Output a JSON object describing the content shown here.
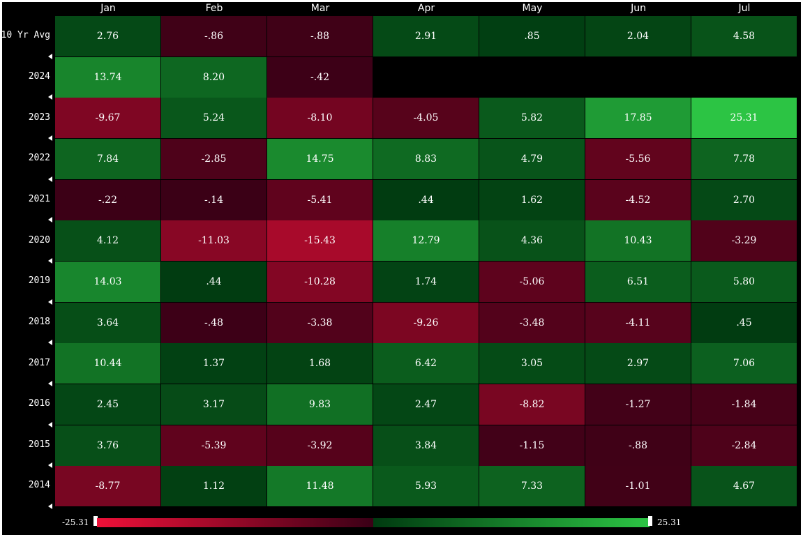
{
  "chart_data": {
    "type": "heatmap",
    "columns": [
      "Jan",
      "Feb",
      "Mar",
      "Apr",
      "May",
      "Jun",
      "Jul"
    ],
    "rows": [
      {
        "label": "10 Yr Avg",
        "values": [
          2.76,
          -0.86,
          -0.88,
          2.91,
          0.85,
          2.04,
          4.58
        ],
        "display": [
          "2.76",
          "-.86",
          "-.88",
          "2.91",
          ".85",
          "2.04",
          "4.58"
        ]
      },
      {
        "label": "2024",
        "values": [
          13.74,
          8.2,
          -0.42,
          null,
          null,
          null,
          null
        ],
        "display": [
          "13.74",
          "8.20",
          "-.42",
          "",
          "",
          "",
          ""
        ]
      },
      {
        "label": "2023",
        "values": [
          -9.67,
          5.24,
          -8.1,
          -4.05,
          5.82,
          17.85,
          25.31
        ],
        "display": [
          "-9.67",
          "5.24",
          "-8.10",
          "-4.05",
          "5.82",
          "17.85",
          "25.31"
        ]
      },
      {
        "label": "2022",
        "values": [
          7.84,
          -2.85,
          14.75,
          8.83,
          4.79,
          -5.56,
          7.78
        ],
        "display": [
          "7.84",
          "-2.85",
          "14.75",
          "8.83",
          "4.79",
          "-5.56",
          "7.78"
        ]
      },
      {
        "label": "2021",
        "values": [
          -0.22,
          -0.14,
          -5.41,
          0.44,
          1.62,
          -4.52,
          2.7
        ],
        "display": [
          "-.22",
          "-.14",
          "-5.41",
          ".44",
          "1.62",
          "-4.52",
          "2.70"
        ]
      },
      {
        "label": "2020",
        "values": [
          4.12,
          -11.03,
          -15.43,
          12.79,
          4.36,
          10.43,
          -3.29
        ],
        "display": [
          "4.12",
          "-11.03",
          "-15.43",
          "12.79",
          "4.36",
          "10.43",
          "-3.29"
        ]
      },
      {
        "label": "2019",
        "values": [
          14.03,
          0.44,
          -10.28,
          1.74,
          -5.06,
          6.51,
          5.8
        ],
        "display": [
          "14.03",
          ".44",
          "-10.28",
          "1.74",
          "-5.06",
          "6.51",
          "5.80"
        ]
      },
      {
        "label": "2018",
        "values": [
          3.64,
          -0.48,
          -3.38,
          -9.26,
          -3.48,
          -4.11,
          0.45
        ],
        "display": [
          "3.64",
          "-.48",
          "-3.38",
          "-9.26",
          "-3.48",
          "-4.11",
          ".45"
        ]
      },
      {
        "label": "2017",
        "values": [
          10.44,
          1.37,
          1.68,
          6.42,
          3.05,
          2.97,
          7.06
        ],
        "display": [
          "10.44",
          "1.37",
          "1.68",
          "6.42",
          "3.05",
          "2.97",
          "7.06"
        ]
      },
      {
        "label": "2016",
        "values": [
          2.45,
          3.17,
          9.83,
          2.47,
          -8.82,
          -1.27,
          -1.84
        ],
        "display": [
          "2.45",
          "3.17",
          "9.83",
          "2.47",
          "-8.82",
          "-1.27",
          "-1.84"
        ]
      },
      {
        "label": "2015",
        "values": [
          3.76,
          -5.39,
          -3.92,
          3.84,
          -1.15,
          -0.88,
          -2.84
        ],
        "display": [
          "3.76",
          "-5.39",
          "-3.92",
          "3.84",
          "-1.15",
          "-.88",
          "-2.84"
        ]
      },
      {
        "label": "2014",
        "values": [
          -8.77,
          1.12,
          11.48,
          5.93,
          7.33,
          -1.01,
          4.67
        ],
        "display": [
          "-8.77",
          "1.12",
          "11.48",
          "5.93",
          "7.33",
          "-1.01",
          "4.67"
        ]
      }
    ],
    "color_scale": {
      "min": -25.31,
      "max": 25.31,
      "min_label": "-25.31",
      "max_label": "25.31",
      "neg_far": "#ee1038",
      "neg_near": "#3a0016",
      "pos_near": "#003a10",
      "pos_far": "#2cc444"
    },
    "background": "#000000"
  }
}
